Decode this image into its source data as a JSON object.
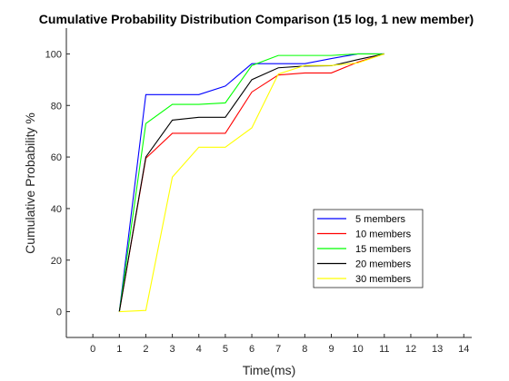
{
  "chart_data": {
    "type": "line",
    "title": "Cumulative Probability Distribution Comparison (15 log, 1 new member)",
    "xlabel": "Time(ms)",
    "ylabel": "Cumulative Probability %",
    "xlim": [
      -1,
      14.3
    ],
    "ylim": [
      -10,
      110
    ],
    "xticks": [
      0,
      1,
      2,
      3,
      4,
      5,
      6,
      7,
      8,
      9,
      10,
      11,
      12,
      13,
      14
    ],
    "yticks": [
      0,
      20,
      40,
      60,
      80,
      100
    ],
    "grid": false,
    "legend_position": "right-middle",
    "x": [
      1,
      2,
      3,
      4,
      5,
      6,
      7,
      8,
      9,
      10,
      11
    ],
    "series": [
      {
        "name": "5 members",
        "color": "#0000ff",
        "values": [
          0,
          84.2,
          84.2,
          84.2,
          87.5,
          96.2,
          96.2,
          96.2,
          98.2,
          100,
          100
        ]
      },
      {
        "name": "10 members",
        "color": "#ff0000",
        "values": [
          0,
          59.5,
          69.2,
          69.2,
          69.2,
          85.2,
          91.8,
          92.6,
          92.6,
          96.8,
          100
        ]
      },
      {
        "name": "15 members",
        "color": "#00ff00",
        "values": [
          0,
          73.0,
          80.4,
          80.4,
          81.0,
          95.5,
          99.4,
          99.4,
          99.4,
          100,
          100
        ]
      },
      {
        "name": "20 members",
        "color": "#000000",
        "values": [
          0,
          60.0,
          74.3,
          75.4,
          75.4,
          90.0,
          94.6,
          95.3,
          95.4,
          97.8,
          100
        ]
      },
      {
        "name": "30 members",
        "color": "#ffff00",
        "values": [
          0,
          0.5,
          52.2,
          63.8,
          63.8,
          71.3,
          92.2,
          95.5,
          95.5,
          96.5,
          100
        ]
      }
    ]
  }
}
